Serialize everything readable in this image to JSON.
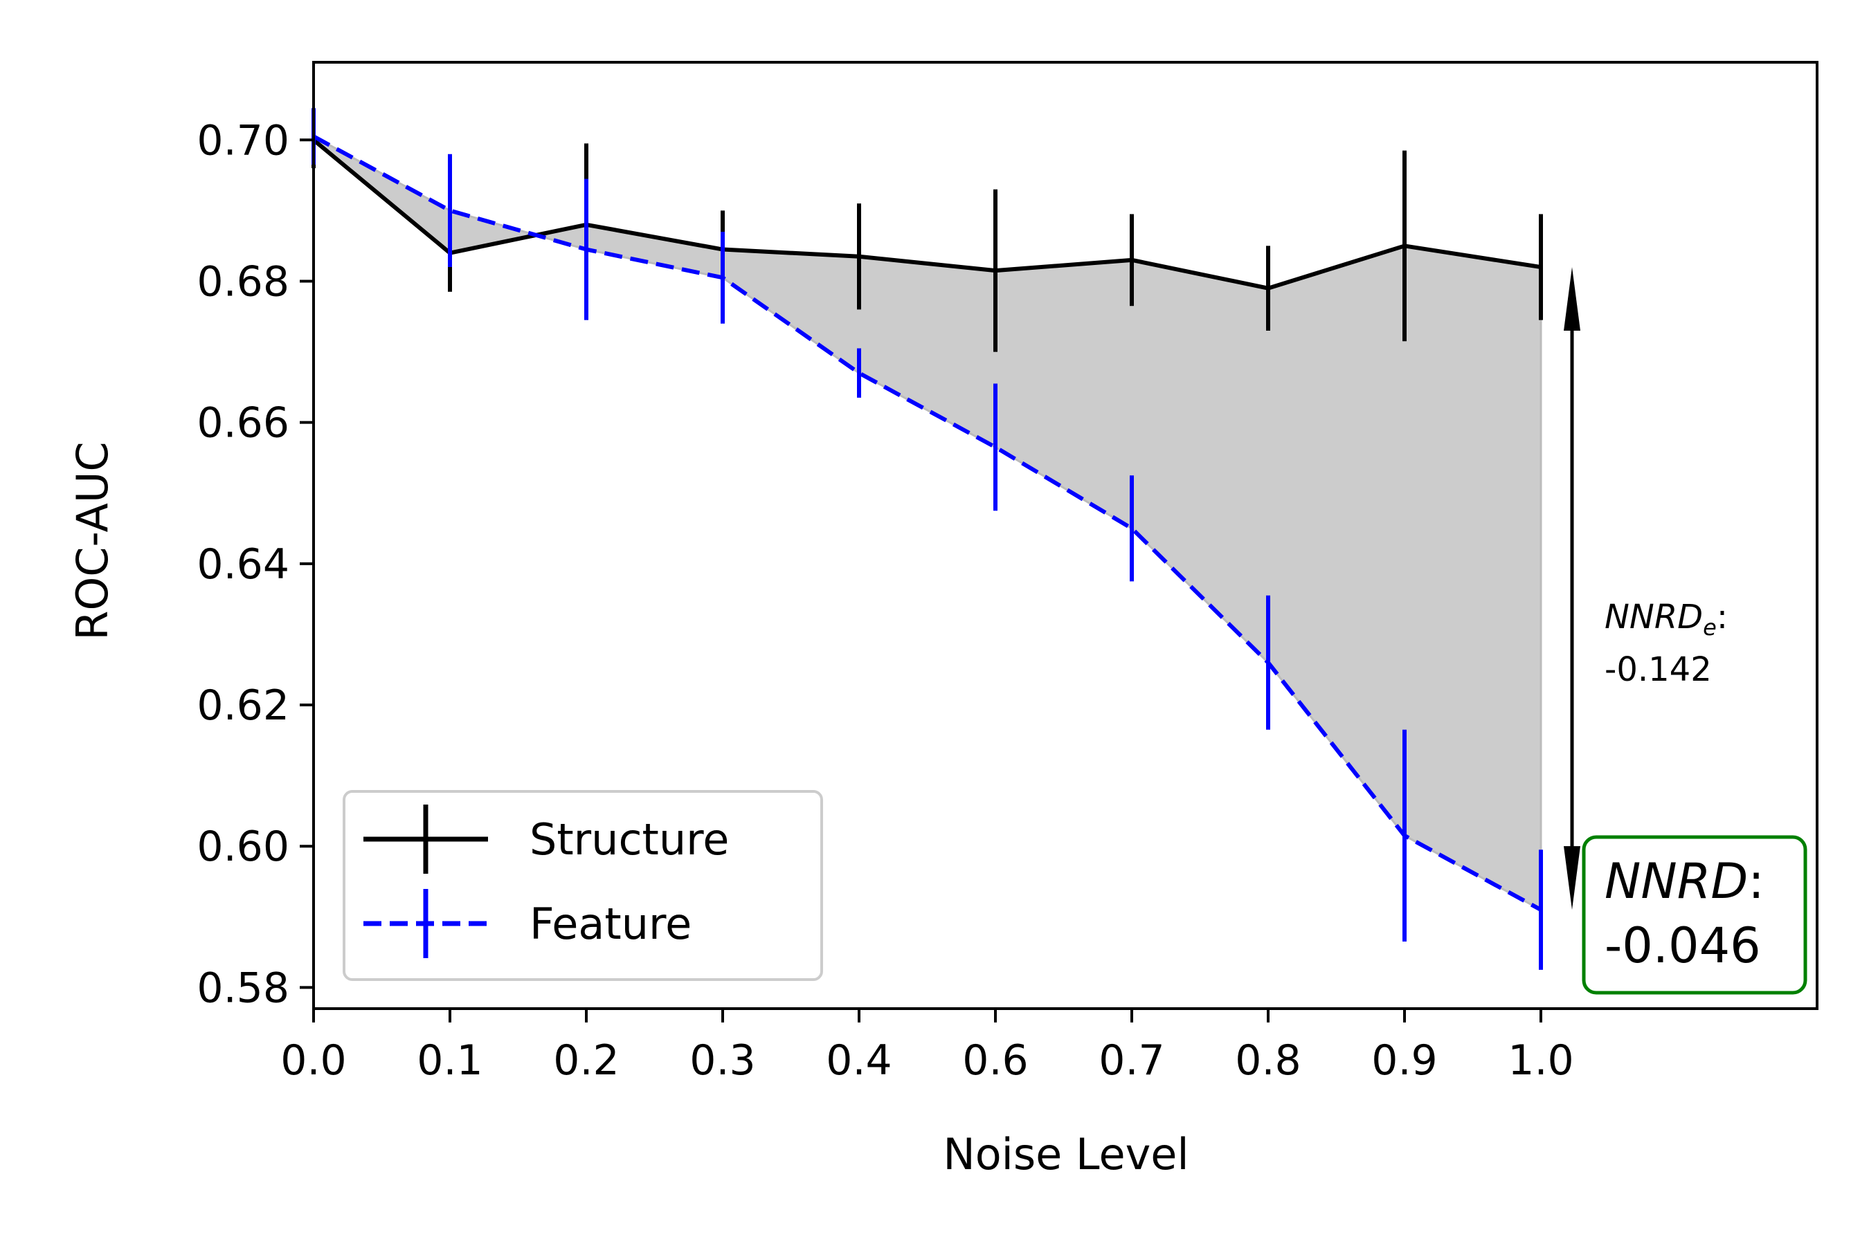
{
  "chart_data": {
    "type": "line",
    "title": "",
    "xlabel": "Noise Level",
    "ylabel": "ROC-AUC",
    "x_tick_labels": [
      "0.0",
      "0.1",
      "0.2",
      "0.3",
      "0.4",
      "0.6",
      "0.7",
      "0.8",
      "0.9",
      "1.0"
    ],
    "y_ticks": [
      "0.58",
      "0.60",
      "0.62",
      "0.64",
      "0.66",
      "0.68",
      "0.70"
    ],
    "ylim": [
      0.577,
      0.711
    ],
    "grid": false,
    "legend_position": "lower-left",
    "series": [
      {
        "name": "Structure",
        "color": "#000000",
        "line_style": "solid",
        "values": [
          0.7,
          0.684,
          0.688,
          0.6845,
          0.6835,
          0.6815,
          0.683,
          0.679,
          0.685,
          0.682
        ],
        "errors": [
          0.004,
          0.0055,
          0.0115,
          0.0055,
          0.0075,
          0.0115,
          0.0065,
          0.006,
          0.0135,
          0.0075
        ]
      },
      {
        "name": "Feature",
        "color": "#0000ff",
        "line_style": "dashed",
        "values": [
          0.7005,
          0.69,
          0.6845,
          0.6805,
          0.667,
          0.6565,
          0.645,
          0.626,
          0.6015,
          0.591
        ],
        "errors": [
          0.004,
          0.008,
          0.01,
          0.0065,
          0.0035,
          0.009,
          0.0075,
          0.0095,
          0.015,
          0.0085
        ]
      }
    ],
    "fill_between": {
      "color": "#cccccc"
    },
    "annotations": {
      "nnrd_e_label": "NNRD",
      "nnrd_e_subscript": "e",
      "nnrd_e_colon": ":",
      "nnrd_e_value": "-0.142",
      "nnrd_label": "NNRD",
      "nnrd_colon": ":",
      "nnrd_value": "-0.046",
      "nnrd_box_color": "#008000"
    }
  }
}
